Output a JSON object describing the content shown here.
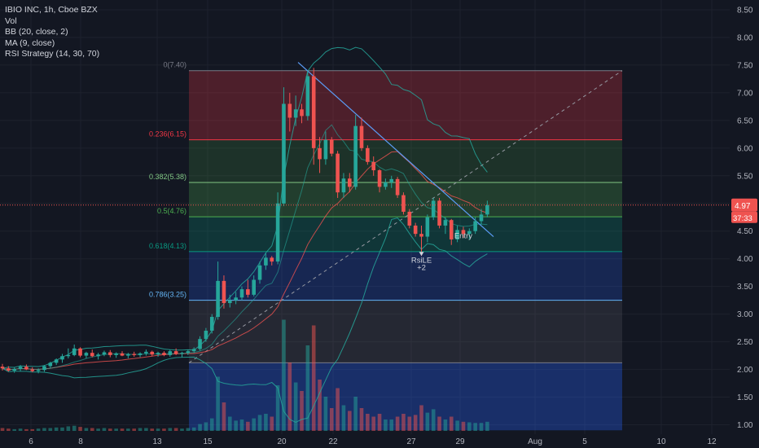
{
  "chart_data": {
    "type": "candlestick",
    "symbol": "IBIO INC, 1h, Cboe BZX",
    "indicators": [
      "Vol",
      "BB (20, close, 2)",
      "MA (9, close)",
      "RSI Strategy (14, 30, 70)"
    ],
    "y_axis": {
      "ticks": [
        "8.50",
        "8.00",
        "7.50",
        "7.00",
        "6.50",
        "6.00",
        "5.50",
        "5.00",
        "4.50",
        "4.00",
        "3.50",
        "3.00",
        "2.50",
        "2.00",
        "1.50",
        "1.00"
      ],
      "ylim": [
        0.9,
        8.6
      ]
    },
    "x_axis": {
      "ticks": [
        "6",
        "8",
        "13",
        "15",
        "20",
        "22",
        "27",
        "29",
        "Aug",
        "5",
        "10",
        "12"
      ]
    },
    "price_label": "4.97",
    "countdown_label": "37:33",
    "fib_levels": [
      {
        "ratio": "0",
        "label": "0(7.40)",
        "price": 7.4,
        "color": "#787b86"
      },
      {
        "ratio": "0.236",
        "label": "0.236(6.15)",
        "price": 6.15,
        "color": "#f23645"
      },
      {
        "ratio": "0.382",
        "label": "0.382(5.38)",
        "price": 5.38,
        "color": "#81c784"
      },
      {
        "ratio": "0.5",
        "label": "0.5(4.76)",
        "price": 4.76,
        "color": "#4caf50"
      },
      {
        "ratio": "0.618",
        "label": "0.618(4.13)",
        "price": 4.13,
        "color": "#089981"
      },
      {
        "ratio": "0.786",
        "label": "0.786(3.25)",
        "price": 3.25,
        "color": "#64b5f6"
      },
      {
        "ratio": "1",
        "label": "",
        "price": 2.12,
        "color": "#787b86"
      },
      {
        "ratio": "1.272",
        "label": "",
        "price": 0.9,
        "color": "#2962ff"
      }
    ],
    "annotations": [
      {
        "text": "RsiLE",
        "x_index": 70,
        "price": 3.93
      },
      {
        "text": "+2",
        "x_index": 70,
        "price": 3.8
      },
      {
        "text": "Entry",
        "x_index": 77,
        "price": 4.37
      }
    ],
    "colors": {
      "up": "#26a69a",
      "down": "#ef5350",
      "background": "#131722",
      "text": "#b2b5be",
      "grid": "#1e222d"
    },
    "candles": [
      [
        2.05,
        2.1,
        1.98,
        2.02
      ],
      [
        2.02,
        2.06,
        1.96,
        1.98
      ],
      [
        1.98,
        2.04,
        1.94,
        2.01
      ],
      [
        2.01,
        2.08,
        1.97,
        2.05
      ],
      [
        2.05,
        2.09,
        1.99,
        2.0
      ],
      [
        2.0,
        2.04,
        1.95,
        1.97
      ],
      [
        1.97,
        2.02,
        1.93,
        1.99
      ],
      [
        1.99,
        2.08,
        1.96,
        2.06
      ],
      [
        2.06,
        2.14,
        2.02,
        2.12
      ],
      [
        2.12,
        2.2,
        2.08,
        2.18
      ],
      [
        2.18,
        2.28,
        2.12,
        2.24
      ],
      [
        2.24,
        2.38,
        2.2,
        2.26
      ],
      [
        2.26,
        2.45,
        2.24,
        2.38
      ],
      [
        2.38,
        2.4,
        2.22,
        2.25
      ],
      [
        2.25,
        2.32,
        2.2,
        2.3
      ],
      [
        2.3,
        2.36,
        2.22,
        2.24
      ],
      [
        2.24,
        2.3,
        2.18,
        2.27
      ],
      [
        2.27,
        2.34,
        2.24,
        2.31
      ],
      [
        2.31,
        2.35,
        2.22,
        2.26
      ],
      [
        2.26,
        2.31,
        2.21,
        2.29
      ],
      [
        2.29,
        2.33,
        2.24,
        2.25
      ],
      [
        2.25,
        2.3,
        2.2,
        2.28
      ],
      [
        2.28,
        2.32,
        2.23,
        2.26
      ],
      [
        2.26,
        2.31,
        2.22,
        2.29
      ],
      [
        2.29,
        2.36,
        2.25,
        2.32
      ],
      [
        2.32,
        2.34,
        2.24,
        2.27
      ],
      [
        2.27,
        2.32,
        2.23,
        2.3
      ],
      [
        2.3,
        2.33,
        2.24,
        2.26
      ],
      [
        2.26,
        2.36,
        2.23,
        2.33
      ],
      [
        2.33,
        2.38,
        2.26,
        2.28
      ],
      [
        2.28,
        2.32,
        2.22,
        2.3
      ],
      [
        2.3,
        2.36,
        2.26,
        2.33
      ],
      [
        2.33,
        2.4,
        2.3,
        2.37
      ],
      [
        2.37,
        2.6,
        2.34,
        2.55
      ],
      [
        2.55,
        2.75,
        2.5,
        2.7
      ],
      [
        2.7,
        3.0,
        2.65,
        2.95
      ],
      [
        2.95,
        3.95,
        2.9,
        3.6
      ],
      [
        3.6,
        3.7,
        3.1,
        3.2
      ],
      [
        3.2,
        3.35,
        3.12,
        3.25
      ],
      [
        3.25,
        3.4,
        3.18,
        3.3
      ],
      [
        3.3,
        3.5,
        3.25,
        3.45
      ],
      [
        3.45,
        3.62,
        3.3,
        3.35
      ],
      [
        3.35,
        3.7,
        3.32,
        3.62
      ],
      [
        3.62,
        3.95,
        3.55,
        3.88
      ],
      [
        3.88,
        4.1,
        3.8,
        4.02
      ],
      [
        4.02,
        4.05,
        3.88,
        3.95
      ],
      [
        3.95,
        5.2,
        3.9,
        5.0
      ],
      [
        5.0,
        7.1,
        4.95,
        6.8
      ],
      [
        6.8,
        7.0,
        6.3,
        6.55
      ],
      [
        6.55,
        6.95,
        6.4,
        6.7
      ],
      [
        6.7,
        6.8,
        6.45,
        6.58
      ],
      [
        6.58,
        7.4,
        6.5,
        7.3
      ],
      [
        7.3,
        7.45,
        5.7,
        6.0
      ],
      [
        6.0,
        6.2,
        5.55,
        5.8
      ],
      [
        5.8,
        6.3,
        5.7,
        6.15
      ],
      [
        6.15,
        6.2,
        5.85,
        5.9
      ],
      [
        5.9,
        5.95,
        5.1,
        5.2
      ],
      [
        5.2,
        5.55,
        5.1,
        5.45
      ],
      [
        5.45,
        5.55,
        5.2,
        5.3
      ],
      [
        5.3,
        6.6,
        5.25,
        6.4
      ],
      [
        6.4,
        6.55,
        5.95,
        6.0
      ],
      [
        6.0,
        6.05,
        5.7,
        5.75
      ],
      [
        5.75,
        5.85,
        5.5,
        5.6
      ],
      [
        5.6,
        5.62,
        5.2,
        5.3
      ],
      [
        5.3,
        5.45,
        5.25,
        5.38
      ],
      [
        5.38,
        5.5,
        5.28,
        5.44
      ],
      [
        5.44,
        5.48,
        5.1,
        5.15
      ],
      [
        5.15,
        5.2,
        4.8,
        4.85
      ],
      [
        4.85,
        4.9,
        4.55,
        4.6
      ],
      [
        4.6,
        4.65,
        4.4,
        4.45
      ],
      [
        4.45,
        4.6,
        4.05,
        4.4
      ],
      [
        4.4,
        4.8,
        4.3,
        4.75
      ],
      [
        4.75,
        5.1,
        4.7,
        5.05
      ],
      [
        5.05,
        5.1,
        4.55,
        4.6
      ],
      [
        4.6,
        4.75,
        4.45,
        4.7
      ],
      [
        4.7,
        4.72,
        4.25,
        4.35
      ],
      [
        4.35,
        4.6,
        4.3,
        4.52
      ],
      [
        4.52,
        4.58,
        4.38,
        4.45
      ],
      [
        4.45,
        4.55,
        4.35,
        4.5
      ],
      [
        4.5,
        4.75,
        4.45,
        4.68
      ],
      [
        4.68,
        4.9,
        4.62,
        4.8
      ],
      [
        4.8,
        5.05,
        4.75,
        4.97
      ]
    ],
    "volumes": [
      0.5,
      0.4,
      0.3,
      0.4,
      0.3,
      0.3,
      0.4,
      0.5,
      0.5,
      0.6,
      0.6,
      0.8,
      0.9,
      0.7,
      0.5,
      0.5,
      0.4,
      0.5,
      0.4,
      0.4,
      0.4,
      0.4,
      0.4,
      0.5,
      0.5,
      0.4,
      0.4,
      0.4,
      0.5,
      0.5,
      0.4,
      0.5,
      0.6,
      1.2,
      1.5,
      2.2,
      9.5,
      5.0,
      2.5,
      1.8,
      2.0,
      1.6,
      2.2,
      2.8,
      3.0,
      2.5,
      8.0,
      19.5,
      12.0,
      8.5,
      7.0,
      15.0,
      18.5,
      9.0,
      6.0,
      4.0,
      7.5,
      4.5,
      3.5,
      6.0,
      4.0,
      3.0,
      2.5,
      3.0,
      2.0,
      2.0,
      2.5,
      3.0,
      2.5,
      2.8,
      4.5,
      3.2,
      3.8,
      2.5,
      2.0,
      2.5,
      1.8,
      1.6,
      1.5,
      1.4,
      1.4,
      1.6
    ]
  }
}
